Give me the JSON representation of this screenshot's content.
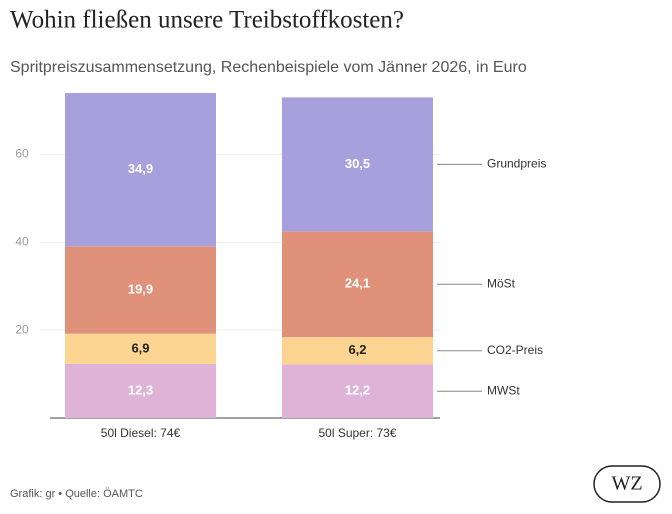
{
  "chart_data": {
    "type": "stacked_bar",
    "title": "Wohin fließen unsere Treibstoffkosten?",
    "subtitle": "Spritpreiszusammensetzung, Rechenbeispiele vom Jänner 2026, in Euro",
    "categories": [
      "50l Diesel: 74€",
      "50l Super: 73€"
    ],
    "series": [
      {
        "name": "MWSt",
        "color": "#dfb3d8",
        "values": [
          12.3,
          12.2
        ],
        "value_labels": [
          "12,3",
          "12,2"
        ]
      },
      {
        "name": "CO2-Preis",
        "color": "#fdd592",
        "values": [
          6.9,
          6.2
        ],
        "value_labels": [
          "6,9",
          "6,2"
        ]
      },
      {
        "name": "MöSt",
        "color": "#e0917a",
        "values": [
          19.9,
          24.1
        ],
        "value_labels": [
          "19,9",
          "24,1"
        ]
      },
      {
        "name": "Grundpreis",
        "color": "#a89fdd",
        "values": [
          34.9,
          30.5
        ],
        "value_labels": [
          "34,9",
          "30,5"
        ]
      }
    ],
    "ylim": [
      0,
      74
    ],
    "yticks": [
      20,
      40,
      60
    ],
    "grid": true,
    "source": "Grafik: gr • Quelle: ÖAMTC",
    "logo": "WZ"
  }
}
